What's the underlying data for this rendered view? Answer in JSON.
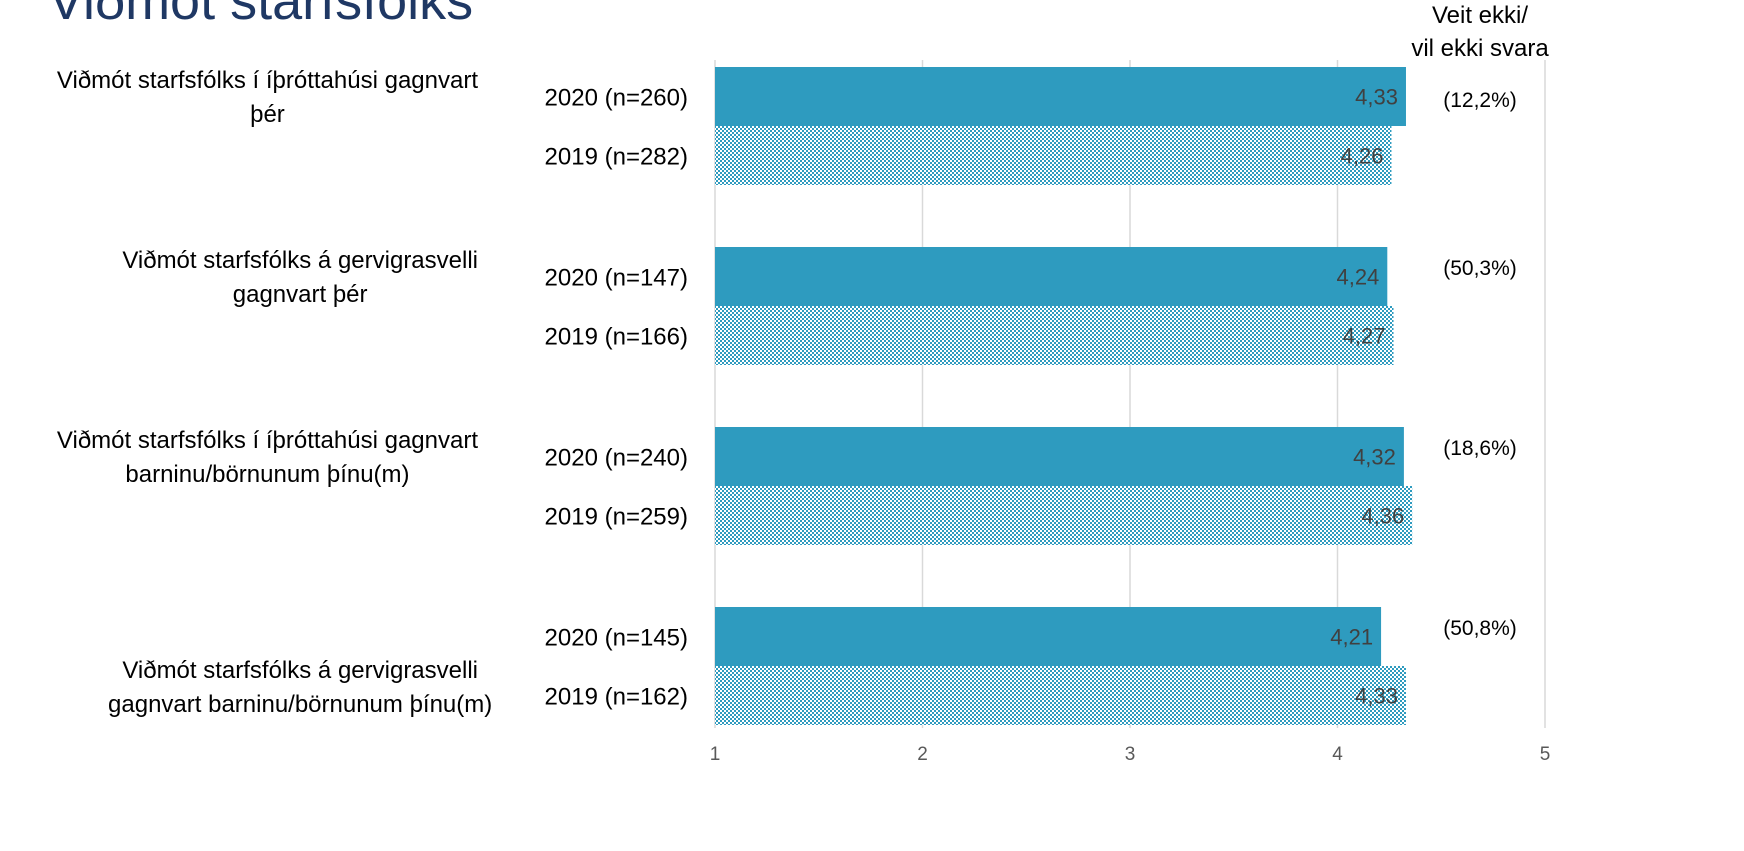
{
  "title": "Viðmót starfsfólks",
  "dont_know_header": [
    "Veit ekki/",
    "vil ekki svara"
  ],
  "colors": {
    "y2020": "#2e9bbf",
    "y2019_pattern": "#2e9bbf",
    "grid": "#d9d9d9",
    "value_label": "#404040"
  },
  "chart_data": {
    "type": "bar",
    "orientation": "horizontal",
    "xlim": [
      1,
      5
    ],
    "x_ticks": [
      "1",
      "2",
      "3",
      "4",
      "5"
    ],
    "grid": true,
    "series": [
      {
        "name": "2020",
        "style": "solid"
      },
      {
        "name": "2019",
        "style": "pattern"
      }
    ],
    "groups": [
      {
        "label_lines": [
          "Viðmót starfsfólks í íþróttahúsi gagnvart",
          "þér"
        ],
        "dont_know": "(12,2%)",
        "bars": [
          {
            "label": "2020 (n=260)",
            "value": 4.33,
            "value_label": "4,33"
          },
          {
            "label": "2019 (n=282)",
            "value": 4.26,
            "value_label": "4,26"
          }
        ]
      },
      {
        "label_lines": [
          "Viðmót starfsfólks á gervigrasvelli",
          "gagnvart þér"
        ],
        "dont_know": "(50,3%)",
        "bars": [
          {
            "label": "2020 (n=147)",
            "value": 4.24,
            "value_label": "4,24"
          },
          {
            "label": "2019 (n=166)",
            "value": 4.27,
            "value_label": "4,27"
          }
        ]
      },
      {
        "label_lines": [
          "Viðmót starfsfólks í íþróttahúsi gagnvart",
          "barninu/börnunum þínu(m)"
        ],
        "dont_know": "(18,6%)",
        "bars": [
          {
            "label": "2020 (n=240)",
            "value": 4.32,
            "value_label": "4,32"
          },
          {
            "label": "2019 (n=259)",
            "value": 4.36,
            "value_label": "4,36"
          }
        ]
      },
      {
        "label_lines": [
          "Viðmót starfsfólks á gervigrasvelli",
          "gagnvart barninu/börnunum þínu(m)"
        ],
        "dont_know": "(50,8%)",
        "bars": [
          {
            "label": "2020 (n=145)",
            "value": 4.21,
            "value_label": "4,21"
          },
          {
            "label": "2019 (n=162)",
            "value": 4.33,
            "value_label": "4,33"
          }
        ]
      }
    ]
  }
}
